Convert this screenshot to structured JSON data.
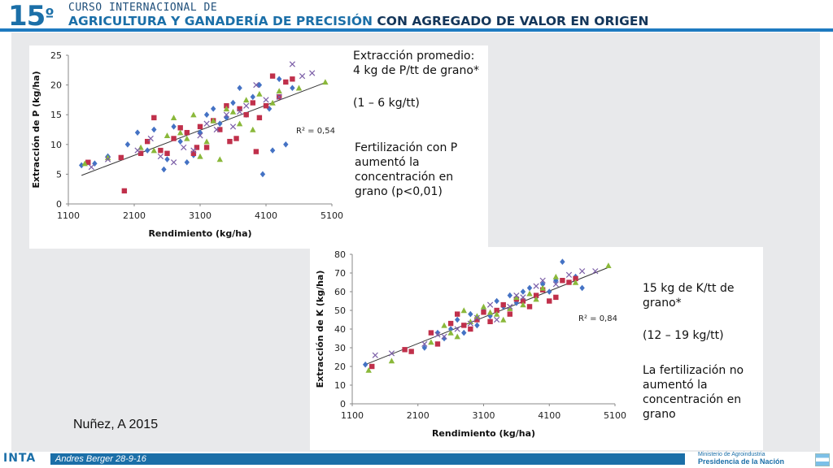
{
  "header": {
    "number": "15",
    "ordinal": "º",
    "line1": "CURSO INTERNACIONAL DE",
    "line2_a": "AGRICULTURA Y GANADERÍA DE PRECISIÓN",
    "line2_b": " CON AGREGADO DE VALOR EN ORIGEN"
  },
  "panel1": {
    "text_lines": [
      "Extracción promedio:",
      "4 kg de P/tt de grano*",
      "(1 – 6 kg/tt)",
      "Fertilización con P",
      "aumentó la",
      "concentración en",
      "grano (p<0,01)"
    ]
  },
  "panel2": {
    "text_lines": [
      "15 kg de K/tt de",
      "grano*",
      "(12 – 19 kg/tt)",
      "La fertilización no",
      "aumentó la",
      "concentración en",
      "grano"
    ]
  },
  "citation": "Nuñez, A 2015",
  "footer": {
    "author": "Andres Berger 28-9-16",
    "logo_left": "INTA",
    "ministry_line1": "Ministerio de Agroindustria",
    "ministry_line2": "Presidencia de la Nación"
  },
  "colors": {
    "blue": "#4472c4",
    "red": "#c0304b",
    "green": "#8ab83a",
    "purple": "#7b5ea7",
    "header_blue": "#1b6fa8"
  },
  "chart_data": [
    {
      "type": "scatter",
      "xlabel": "Rendimiento (kg/ha)",
      "ylabel": "Extracción de P (kg/ha)",
      "xlim": [
        1100,
        5100
      ],
      "ylim": [
        0,
        25
      ],
      "xticks": [
        1100,
        2100,
        3100,
        4100,
        5100
      ],
      "yticks": [
        0,
        5,
        10,
        15,
        20,
        25
      ],
      "annotation": "R² = 0,54",
      "trendline": [
        [
          1300,
          4.8
        ],
        [
          5000,
          20.4
        ]
      ],
      "series": [
        {
          "marker": "diamond",
          "color": "#4472c4",
          "points": [
            [
              1300,
              6.5
            ],
            [
              1500,
              6.8
            ],
            [
              1700,
              8
            ],
            [
              2000,
              10
            ],
            [
              2150,
              12
            ],
            [
              2300,
              9
            ],
            [
              2400,
              12.5
            ],
            [
              2550,
              5.8
            ],
            [
              2600,
              7.5
            ],
            [
              2700,
              13
            ],
            [
              2800,
              10.5
            ],
            [
              2900,
              7
            ],
            [
              3000,
              8.2
            ],
            [
              3100,
              12
            ],
            [
              3200,
              15
            ],
            [
              3300,
              16
            ],
            [
              3400,
              13.5
            ],
            [
              3500,
              14.5
            ],
            [
              3600,
              17
            ],
            [
              3700,
              19.5
            ],
            [
              3800,
              15
            ],
            [
              3900,
              18
            ],
            [
              4000,
              20
            ],
            [
              4050,
              5
            ],
            [
              4150,
              16
            ],
            [
              4200,
              9
            ],
            [
              4300,
              21
            ],
            [
              4400,
              10
            ],
            [
              4500,
              19.5
            ]
          ]
        },
        {
          "marker": "square",
          "color": "#c0304b",
          "points": [
            [
              1400,
              7
            ],
            [
              1900,
              7.8
            ],
            [
              1950,
              2.2
            ],
            [
              2200,
              8.5
            ],
            [
              2300,
              10.5
            ],
            [
              2400,
              14.5
            ],
            [
              2500,
              9
            ],
            [
              2600,
              8.5
            ],
            [
              2700,
              11
            ],
            [
              2800,
              12.8
            ],
            [
              2900,
              12
            ],
            [
              3000,
              8.5
            ],
            [
              3050,
              9.5
            ],
            [
              3100,
              13
            ],
            [
              3200,
              9.5
            ],
            [
              3300,
              14
            ],
            [
              3400,
              12.5
            ],
            [
              3500,
              16.5
            ],
            [
              3550,
              10.5
            ],
            [
              3650,
              11
            ],
            [
              3700,
              16
            ],
            [
              3800,
              15
            ],
            [
              3900,
              17
            ],
            [
              3950,
              8.8
            ],
            [
              4000,
              14.5
            ],
            [
              4100,
              16.5
            ],
            [
              4200,
              21.5
            ],
            [
              4300,
              18
            ],
            [
              4400,
              20.5
            ],
            [
              4500,
              21
            ]
          ]
        },
        {
          "marker": "triangle",
          "color": "#8ab83a",
          "points": [
            [
              1350,
              6.8
            ],
            [
              1700,
              7.8
            ],
            [
              2200,
              9.5
            ],
            [
              2400,
              9
            ],
            [
              2600,
              11.5
            ],
            [
              2700,
              14.5
            ],
            [
              2800,
              12
            ],
            [
              2900,
              11
            ],
            [
              3000,
              15
            ],
            [
              3100,
              8
            ],
            [
              3200,
              10.5
            ],
            [
              3300,
              14
            ],
            [
              3400,
              7.5
            ],
            [
              3500,
              16
            ],
            [
              3600,
              15.5
            ],
            [
              3700,
              13.5
            ],
            [
              3800,
              17.5
            ],
            [
              3900,
              12.5
            ],
            [
              4000,
              18.5
            ],
            [
              4200,
              17
            ],
            [
              4300,
              19
            ],
            [
              4600,
              19.5
            ],
            [
              5000,
              20.5
            ]
          ]
        },
        {
          "marker": "x",
          "color": "#7b5ea7",
          "points": [
            [
              1450,
              6.2
            ],
            [
              1700,
              7.5
            ],
            [
              2150,
              9
            ],
            [
              2350,
              11
            ],
            [
              2500,
              8
            ],
            [
              2700,
              7
            ],
            [
              2850,
              9.5
            ],
            [
              3000,
              9
            ],
            [
              3100,
              11.5
            ],
            [
              3200,
              13.5
            ],
            [
              3350,
              12.5
            ],
            [
              3500,
              15
            ],
            [
              3600,
              13
            ],
            [
              3700,
              15.5
            ],
            [
              3800,
              16.5
            ],
            [
              3950,
              20
            ],
            [
              4100,
              17.5
            ],
            [
              4300,
              18
            ],
            [
              4500,
              23.5
            ],
            [
              4650,
              21.5
            ],
            [
              4800,
              22
            ]
          ]
        }
      ]
    },
    {
      "type": "scatter",
      "xlabel": "Rendimiento (kg/ha)",
      "ylabel": "Extracción de K (kg/ha)",
      "xlim": [
        1100,
        5100
      ],
      "ylim": [
        0,
        80
      ],
      "xticks": [
        1100,
        2100,
        3100,
        4100,
        5100
      ],
      "yticks": [
        0,
        10,
        20,
        30,
        40,
        50,
        60,
        70,
        80
      ],
      "annotation": "R² = 0,84",
      "trendline": [
        [
          1300,
          21
        ],
        [
          5000,
          73
        ]
      ],
      "series": [
        {
          "marker": "diamond",
          "color": "#4472c4",
          "points": [
            [
              1300,
              21
            ],
            [
              2200,
              30
            ],
            [
              2400,
              38
            ],
            [
              2500,
              35
            ],
            [
              2600,
              40
            ],
            [
              2700,
              45
            ],
            [
              2800,
              38
            ],
            [
              2900,
              48
            ],
            [
              3000,
              42
            ],
            [
              3100,
              50
            ],
            [
              3200,
              47
            ],
            [
              3300,
              55
            ],
            [
              3400,
              52
            ],
            [
              3500,
              58
            ],
            [
              3600,
              54
            ],
            [
              3700,
              60
            ],
            [
              3800,
              62
            ],
            [
              3900,
              57
            ],
            [
              4000,
              64
            ],
            [
              4100,
              60
            ],
            [
              4200,
              66
            ],
            [
              4300,
              76
            ],
            [
              4500,
              68
            ],
            [
              4600,
              62
            ]
          ]
        },
        {
          "marker": "square",
          "color": "#c0304b",
          "points": [
            [
              1400,
              20
            ],
            [
              1900,
              29
            ],
            [
              2000,
              28
            ],
            [
              2300,
              38
            ],
            [
              2400,
              32
            ],
            [
              2600,
              43
            ],
            [
              2700,
              48
            ],
            [
              2800,
              42
            ],
            [
              2900,
              40
            ],
            [
              3000,
              45
            ],
            [
              3100,
              49
            ],
            [
              3200,
              44
            ],
            [
              3300,
              50
            ],
            [
              3400,
              53
            ],
            [
              3500,
              48
            ],
            [
              3600,
              56
            ],
            [
              3700,
              55
            ],
            [
              3800,
              52
            ],
            [
              3900,
              58
            ],
            [
              4000,
              61
            ],
            [
              4100,
              55
            ],
            [
              4200,
              57
            ],
            [
              4300,
              66
            ],
            [
              4400,
              65
            ],
            [
              4500,
              67
            ]
          ]
        },
        {
          "marker": "triangle",
          "color": "#8ab83a",
          "points": [
            [
              1350,
              18
            ],
            [
              1700,
              23
            ],
            [
              2300,
              33
            ],
            [
              2500,
              42
            ],
            [
              2600,
              38
            ],
            [
              2700,
              36
            ],
            [
              2800,
              50
            ],
            [
              2900,
              44
            ],
            [
              3000,
              47
            ],
            [
              3100,
              52
            ],
            [
              3200,
              49
            ],
            [
              3300,
              48
            ],
            [
              3400,
              45
            ],
            [
              3500,
              51
            ],
            [
              3600,
              57
            ],
            [
              3700,
              53
            ],
            [
              3800,
              59
            ],
            [
              3900,
              56
            ],
            [
              4000,
              62
            ],
            [
              4200,
              68
            ],
            [
              4500,
              65
            ],
            [
              5000,
              74
            ]
          ]
        },
        {
          "marker": "x",
          "color": "#7b5ea7",
          "points": [
            [
              1450,
              26
            ],
            [
              1700,
              27
            ],
            [
              2200,
              32
            ],
            [
              2400,
              37
            ],
            [
              2500,
              36
            ],
            [
              2700,
              40
            ],
            [
              2900,
              43
            ],
            [
              3000,
              46
            ],
            [
              3200,
              53
            ],
            [
              3300,
              45
            ],
            [
              3500,
              52
            ],
            [
              3600,
              58
            ],
            [
              3700,
              57
            ],
            [
              3900,
              63
            ],
            [
              4000,
              66
            ],
            [
              4200,
              64
            ],
            [
              4400,
              69
            ],
            [
              4600,
              71
            ],
            [
              4800,
              71
            ]
          ]
        }
      ]
    }
  ]
}
